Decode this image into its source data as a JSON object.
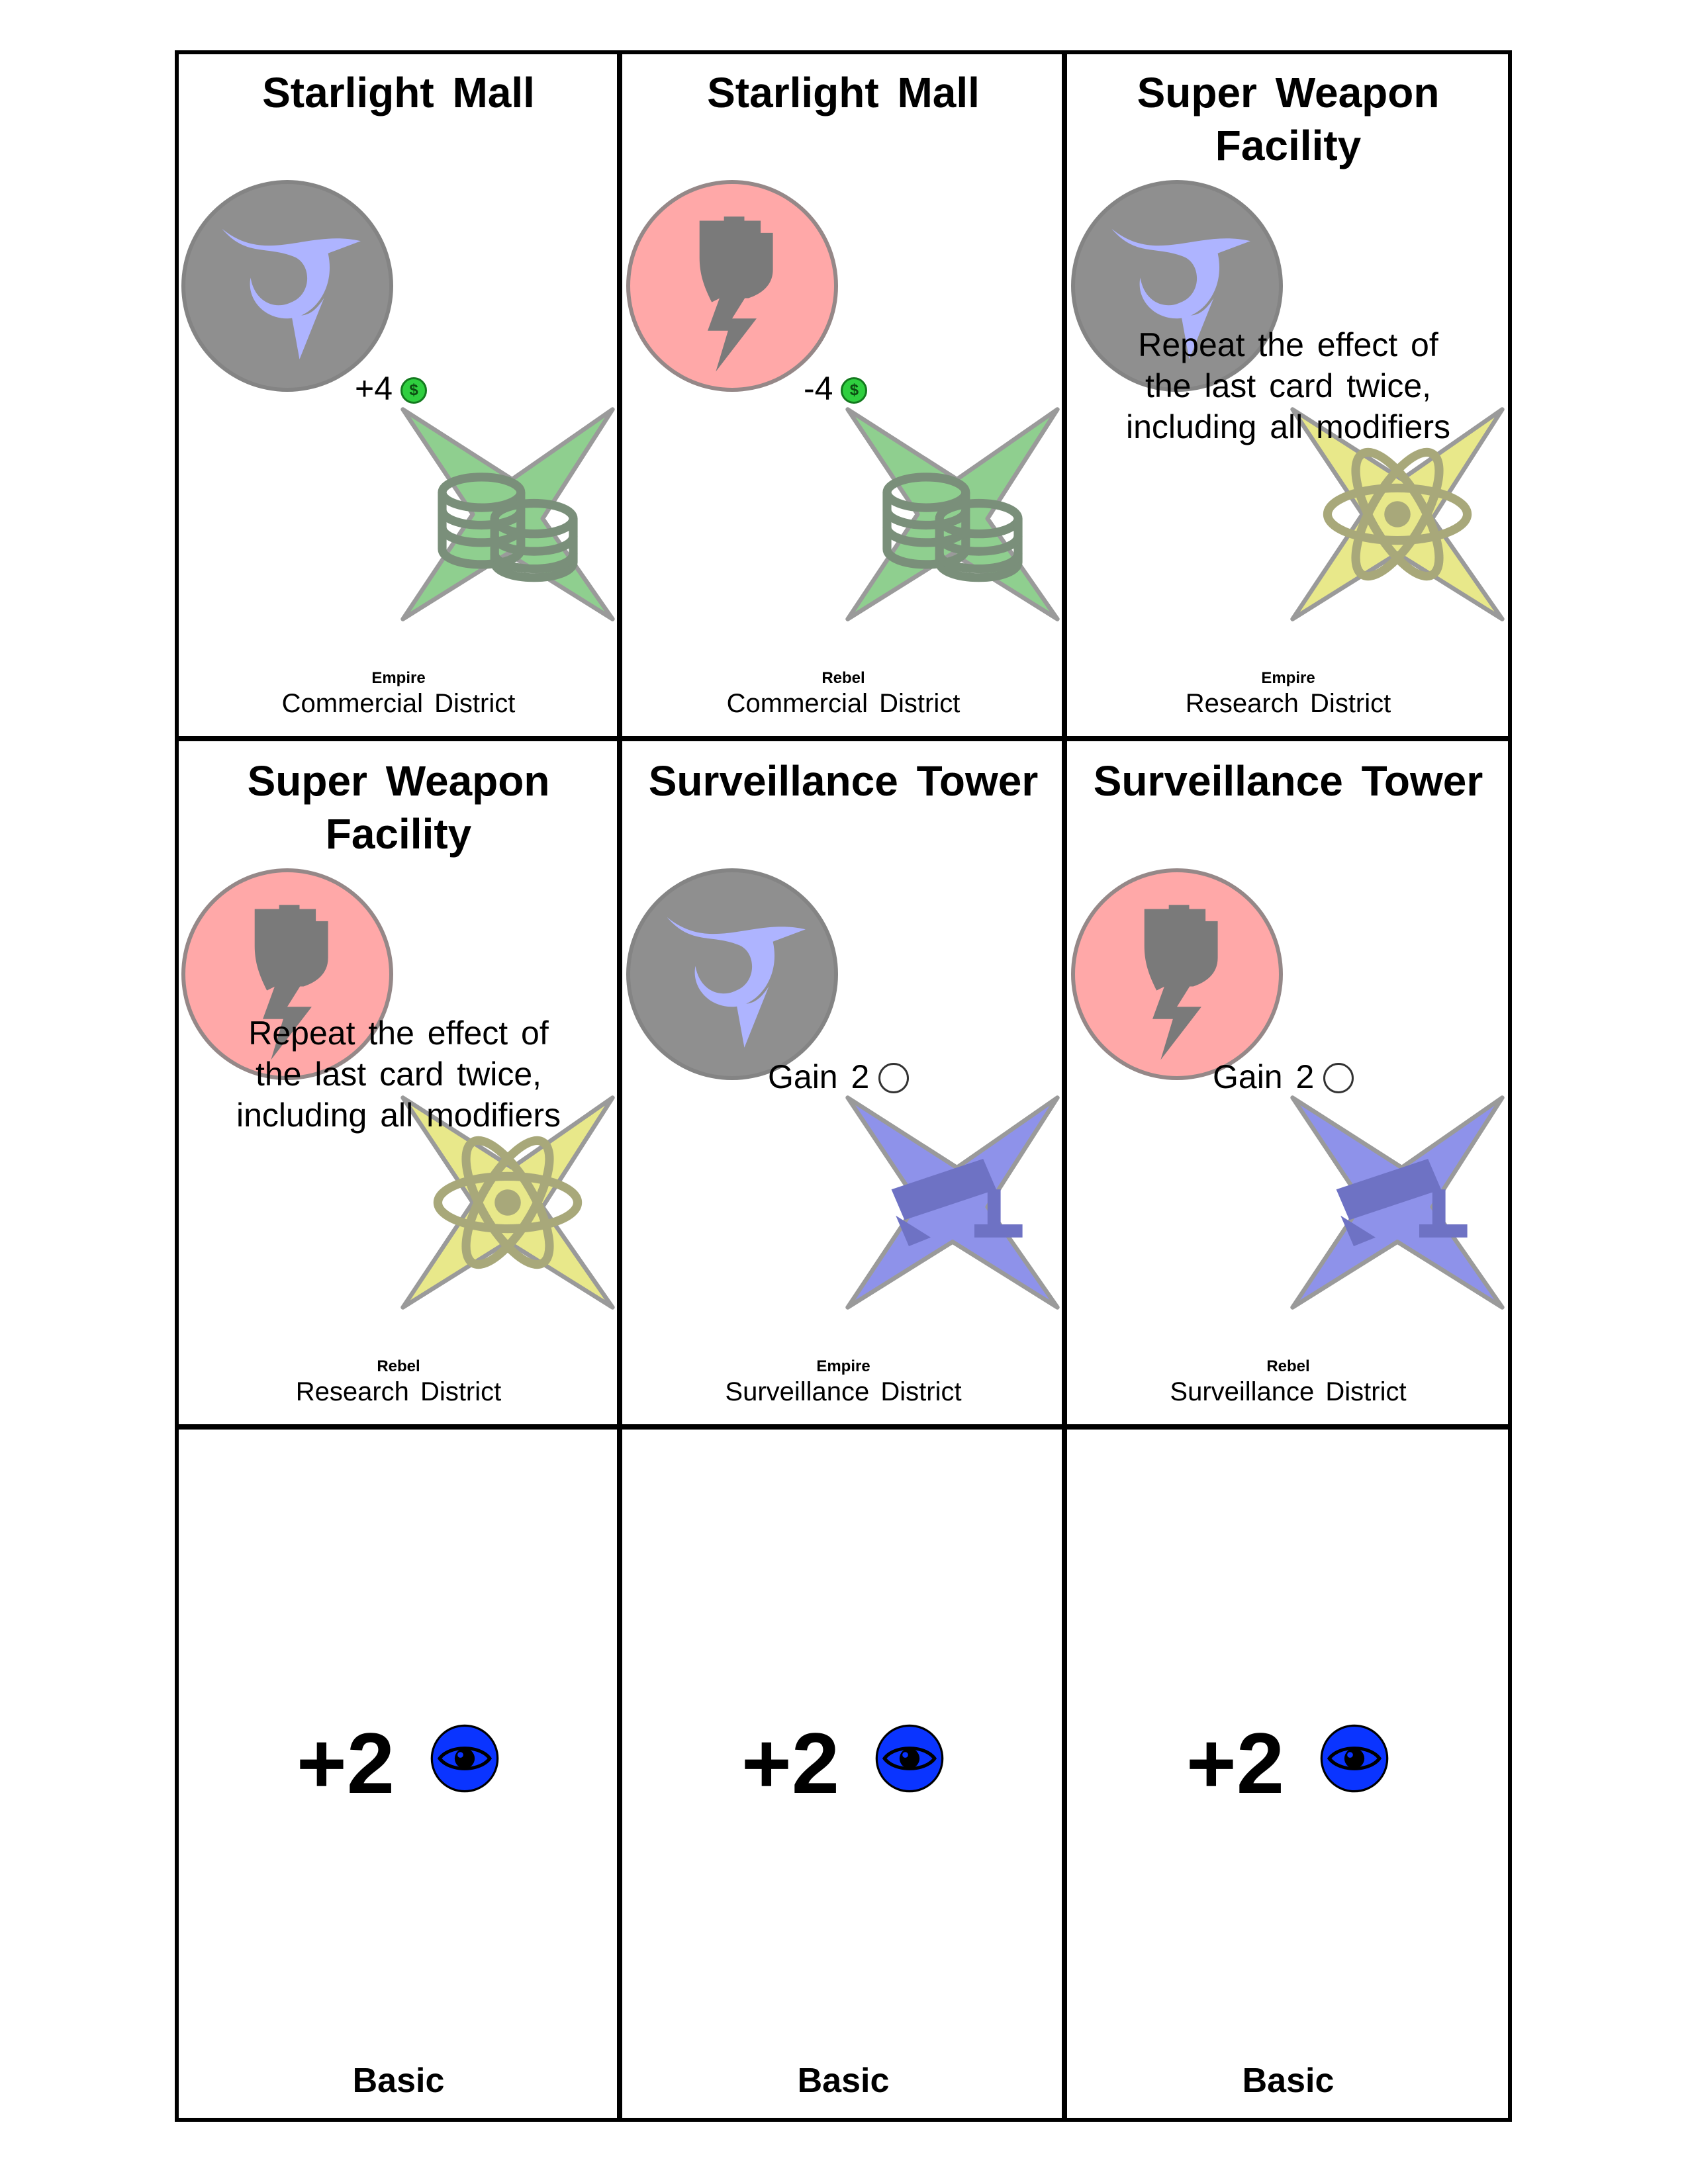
{
  "colors": {
    "empire_circle": "#8f8f8f",
    "rebel_circle": "#ffa8a8",
    "commercial_star": "#8fcf8f",
    "research_star": "#e8e88a",
    "surveillance_star": "#8e92ea",
    "eye_token": "#0a34ff",
    "coin": "#2fcf3f"
  },
  "cards": [
    {
      "title": "Starlight Mall",
      "faction": "Empire",
      "faction_icon": "empire-emblem-icon",
      "effect_value": "+4",
      "effect_icon": "coin-icon",
      "district": "Commercial District",
      "district_icon": "coins-icon"
    },
    {
      "title": "Starlight Mall",
      "faction": "Rebel",
      "faction_icon": "rebel-fist-icon",
      "effect_value": "-4",
      "effect_icon": "coin-icon",
      "district": "Commercial District",
      "district_icon": "coins-icon"
    },
    {
      "title": "Super Weapon Facility",
      "faction": "Empire",
      "faction_icon": "empire-emblem-icon",
      "effect_lines": [
        "Repeat the effect of",
        "the last card twice,",
        "including all modifiers"
      ],
      "district": "Research District",
      "district_icon": "atom-icon"
    },
    {
      "title": "Super Weapon Facility",
      "faction": "Rebel",
      "faction_icon": "rebel-fist-icon",
      "effect_lines": [
        "Repeat the effect of",
        "the last card twice,",
        "including all modifiers"
      ],
      "district": "Research District",
      "district_icon": "atom-icon"
    },
    {
      "title": "Surveillance Tower",
      "faction": "Empire",
      "faction_icon": "empire-emblem-icon",
      "effect_value": "Gain 2",
      "effect_icon": "spy-token-icon",
      "district": "Surveillance District",
      "district_icon": "camera-icon"
    },
    {
      "title": "Surveillance Tower",
      "faction": "Rebel",
      "faction_icon": "rebel-fist-icon",
      "effect_value": "Gain 2",
      "effect_icon": "spy-token-icon",
      "district": "Surveillance District",
      "district_icon": "camera-icon"
    },
    {
      "value": "+2",
      "icon": "eye-icon",
      "label": "Basic"
    },
    {
      "value": "+2",
      "icon": "eye-icon",
      "label": "Basic"
    },
    {
      "value": "+2",
      "icon": "eye-icon",
      "label": "Basic"
    }
  ]
}
